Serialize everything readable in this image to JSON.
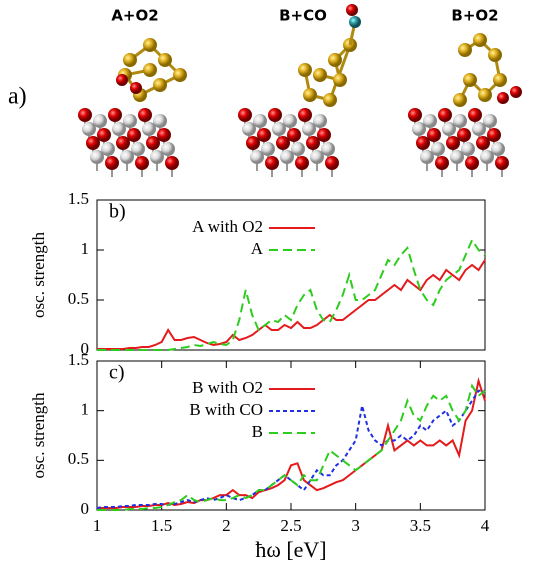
{
  "figure": {
    "panel_a": {
      "label": "a)",
      "structures": [
        "A+O2",
        "B+CO",
        "B+O2"
      ]
    }
  },
  "chart_data": [
    {
      "type": "line",
      "panel_label": "b)",
      "y_label": "osc. strength",
      "legend": "upper left",
      "xlim": [
        1,
        4
      ],
      "ylim": [
        0,
        1.5
      ],
      "yticks": [
        0,
        0.5,
        1,
        1.5
      ],
      "x": [
        1.0,
        1.05,
        1.1,
        1.15,
        1.2,
        1.25,
        1.3,
        1.35,
        1.4,
        1.45,
        1.5,
        1.55,
        1.6,
        1.65,
        1.7,
        1.75,
        1.8,
        1.85,
        1.9,
        1.95,
        2.0,
        2.05,
        2.1,
        2.15,
        2.2,
        2.25,
        2.3,
        2.35,
        2.4,
        2.45,
        2.5,
        2.55,
        2.6,
        2.65,
        2.7,
        2.75,
        2.8,
        2.85,
        2.9,
        2.95,
        3.0,
        3.05,
        3.1,
        3.15,
        3.2,
        3.25,
        3.3,
        3.35,
        3.4,
        3.45,
        3.5,
        3.55,
        3.6,
        3.65,
        3.7,
        3.75,
        3.8,
        3.85,
        3.9,
        3.95,
        4.0
      ],
      "series": [
        {
          "name": "A with O2",
          "color": "#e41a1c",
          "style": "solid",
          "values": [
            0.01,
            0.01,
            0.01,
            0.01,
            0.01,
            0.02,
            0.02,
            0.03,
            0.03,
            0.05,
            0.08,
            0.2,
            0.1,
            0.1,
            0.12,
            0.13,
            0.1,
            0.07,
            0.05,
            0.06,
            0.08,
            0.15,
            0.1,
            0.12,
            0.15,
            0.2,
            0.25,
            0.2,
            0.2,
            0.25,
            0.22,
            0.28,
            0.22,
            0.22,
            0.25,
            0.3,
            0.35,
            0.3,
            0.3,
            0.35,
            0.4,
            0.45,
            0.5,
            0.5,
            0.55,
            0.6,
            0.65,
            0.6,
            0.7,
            0.65,
            0.6,
            0.7,
            0.75,
            0.7,
            0.8,
            0.75,
            0.7,
            0.8,
            0.85,
            0.8,
            0.9
          ]
        },
        {
          "name": "A",
          "color": "#2ecc1f",
          "style": "dashed",
          "values": [
            0,
            0,
            0,
            0,
            0,
            0,
            0,
            0,
            0,
            0,
            0,
            0,
            0.01,
            0.02,
            0.03,
            0.05,
            0.04,
            0.06,
            0.08,
            0.06,
            0.05,
            0.1,
            0.3,
            0.6,
            0.35,
            0.2,
            0.25,
            0.3,
            0.28,
            0.35,
            0.3,
            0.45,
            0.55,
            0.6,
            0.4,
            0.3,
            0.28,
            0.4,
            0.55,
            0.75,
            0.5,
            0.5,
            0.55,
            0.6,
            0.75,
            0.9,
            0.85,
            0.95,
            1.02,
            0.8,
            0.6,
            0.5,
            0.45,
            0.6,
            0.7,
            0.75,
            0.8,
            0.95,
            1.1,
            1.0,
            0.95
          ]
        }
      ]
    },
    {
      "type": "line",
      "panel_label": "c)",
      "y_label": "osc. strength",
      "x_label": "ħω [eV]",
      "legend": "upper left",
      "xlim": [
        1,
        4
      ],
      "xticks": [
        1,
        1.5,
        2,
        2.5,
        3,
        3.5,
        4
      ],
      "ylim": [
        0,
        1.5
      ],
      "yticks": [
        0,
        0.5,
        1,
        1.5
      ],
      "x": [
        1.0,
        1.05,
        1.1,
        1.15,
        1.2,
        1.25,
        1.3,
        1.35,
        1.4,
        1.45,
        1.5,
        1.55,
        1.6,
        1.65,
        1.7,
        1.75,
        1.8,
        1.85,
        1.9,
        1.95,
        2.0,
        2.05,
        2.1,
        2.15,
        2.2,
        2.25,
        2.3,
        2.35,
        2.4,
        2.45,
        2.5,
        2.55,
        2.6,
        2.65,
        2.7,
        2.75,
        2.8,
        2.85,
        2.9,
        2.95,
        3.0,
        3.05,
        3.1,
        3.15,
        3.2,
        3.25,
        3.3,
        3.35,
        3.4,
        3.45,
        3.5,
        3.55,
        3.6,
        3.65,
        3.7,
        3.75,
        3.8,
        3.85,
        3.9,
        3.95,
        4.0
      ],
      "series": [
        {
          "name": "B with O2",
          "color": "#e41a1c",
          "style": "solid",
          "values": [
            0.02,
            0.02,
            0.02,
            0.02,
            0.03,
            0.03,
            0.03,
            0.04,
            0.04,
            0.05,
            0.05,
            0.07,
            0.05,
            0.06,
            0.08,
            0.07,
            0.1,
            0.1,
            0.12,
            0.15,
            0.15,
            0.2,
            0.15,
            0.15,
            0.12,
            0.18,
            0.2,
            0.22,
            0.25,
            0.3,
            0.45,
            0.47,
            0.3,
            0.25,
            0.2,
            0.22,
            0.25,
            0.28,
            0.3,
            0.35,
            0.4,
            0.45,
            0.5,
            0.55,
            0.6,
            0.85,
            0.6,
            0.65,
            0.7,
            0.65,
            0.7,
            0.65,
            0.65,
            0.7,
            0.65,
            0.7,
            0.55,
            0.9,
            1.0,
            1.3,
            1.1
          ]
        },
        {
          "name": "B with CO",
          "color": "#1f2fe4",
          "style": "dotted",
          "values": [
            0.02,
            0.03,
            0.03,
            0.03,
            0.04,
            0.04,
            0.05,
            0.05,
            0.05,
            0.06,
            0.06,
            0.05,
            0.06,
            0.08,
            0.1,
            0.08,
            0.1,
            0.12,
            0.1,
            0.12,
            0.15,
            0.12,
            0.1,
            0.12,
            0.15,
            0.2,
            0.2,
            0.25,
            0.3,
            0.35,
            0.3,
            0.25,
            0.2,
            0.3,
            0.4,
            0.35,
            0.35,
            0.45,
            0.5,
            0.6,
            0.7,
            1.05,
            0.8,
            0.7,
            0.65,
            0.7,
            0.7,
            0.75,
            0.7,
            0.75,
            0.85,
            0.8,
            0.9,
            0.95,
            1.0,
            0.85,
            0.9,
            1.0,
            1.1,
            1.2,
            1.2
          ]
        },
        {
          "name": "B",
          "color": "#2ecc1f",
          "style": "dashed",
          "values": [
            0,
            0,
            0,
            0,
            0,
            0.01,
            0.01,
            0.01,
            0.02,
            0.02,
            0.03,
            0.05,
            0.08,
            0.1,
            0.15,
            0.1,
            0.08,
            0.1,
            0.12,
            0.1,
            0.1,
            0.12,
            0.15,
            0.12,
            0.15,
            0.2,
            0.2,
            0.25,
            0.3,
            0.35,
            0.3,
            0.25,
            0.35,
            0.3,
            0.3,
            0.45,
            0.6,
            0.55,
            0.5,
            0.45,
            0.4,
            0.45,
            0.5,
            0.55,
            0.6,
            0.7,
            0.8,
            0.9,
            1.1,
            0.95,
            0.9,
            1.05,
            1.15,
            1.1,
            1.15,
            1.0,
            0.9,
            1.0,
            1.25,
            1.15,
            1.2
          ]
        }
      ]
    }
  ]
}
